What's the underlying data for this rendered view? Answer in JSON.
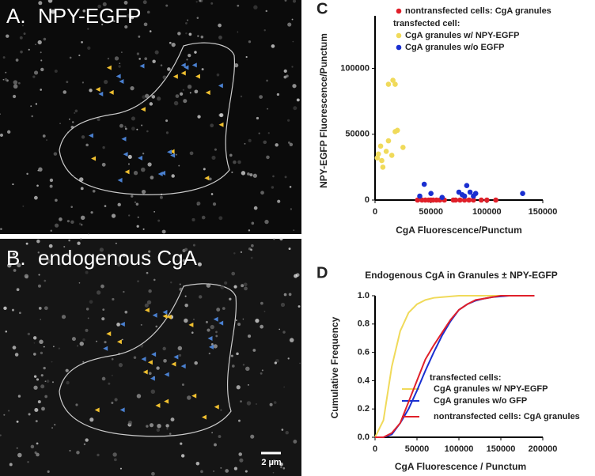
{
  "panels": [
    {
      "label": "A.",
      "title": "NPY-EGFP"
    },
    {
      "label": "B.",
      "title": "endogenous CgA",
      "scale_bar": "2 µm"
    }
  ],
  "chart_data": [
    {
      "type": "scatter",
      "panel_label": "C",
      "xlabel": "CgA Fluorescence/Punctum",
      "ylabel": "NPY-EGFP Fluorescence/Punctum",
      "legend_heading": "transfected cell:",
      "xlim": [
        0,
        150000
      ],
      "ylim": [
        0,
        140000
      ],
      "xticks": [
        0,
        50000,
        100000,
        150000
      ],
      "yticks": [
        0,
        50000,
        100000
      ],
      "series": [
        {
          "name": "nontransfected cells: CgA granules",
          "color": "#e0202a",
          "x": [
            38000,
            42000,
            45000,
            48000,
            50000,
            52000,
            55000,
            58000,
            62000,
            70000,
            72000,
            76000,
            80000,
            84000,
            88000,
            95000,
            100000,
            108000
          ],
          "values": [
            0,
            0,
            0,
            0,
            0,
            0,
            0,
            0,
            0,
            0,
            0,
            0,
            0,
            0,
            0,
            0,
            0,
            0
          ]
        },
        {
          "name": "CgA granules w/ NPY-EGFP",
          "color": "#f0da5a",
          "x": [
            12000,
            16000,
            18000,
            5000,
            3000,
            6000,
            7000,
            10000,
            12000,
            18000,
            20000,
            25000,
            2000,
            15000
          ],
          "values": [
            88000,
            91000,
            88000,
            41000,
            35000,
            30000,
            25000,
            37000,
            45000,
            52000,
            53000,
            40000,
            32000,
            34000
          ]
        },
        {
          "name": "CgA granules w/o EGFP",
          "color": "#1a2fd0",
          "x": [
            44000,
            50000,
            75000,
            78000,
            82000,
            80000,
            85000,
            88000,
            90000,
            132000,
            60000,
            40000
          ],
          "values": [
            12000,
            5000,
            6000,
            4000,
            11000,
            3000,
            6000,
            3000,
            5000,
            5000,
            2000,
            3000
          ]
        }
      ]
    },
    {
      "type": "line",
      "panel_label": "D",
      "title": "Endogenous CgA in Granules ± NPY-EGFP",
      "xlabel": "CgA Fluorescence / Punctum",
      "ylabel": "Cumulative Frequency",
      "legend_heading": "transfected cells:",
      "xlim": [
        0,
        200000
      ],
      "ylim": [
        0,
        1
      ],
      "xticks": [
        0,
        50000,
        100000,
        150000,
        200000
      ],
      "yticks": [
        {
          "value": 0,
          "label": "0.0"
        },
        0.2,
        0.4,
        0.6,
        0.8,
        {
          "value": 1,
          "label": "1.0"
        }
      ],
      "x": [
        0,
        10000,
        20000,
        30000,
        40000,
        50000,
        60000,
        70000,
        80000,
        90000,
        100000,
        110000,
        120000,
        130000,
        140000,
        150000,
        160000,
        170000,
        180000,
        190000
      ],
      "series": [
        {
          "name": "CgA granules w/ NPY-EGFP",
          "color": "#f0da5a",
          "values": [
            0,
            0.12,
            0.5,
            0.75,
            0.88,
            0.94,
            0.97,
            0.985,
            0.99,
            0.995,
            1,
            1,
            1,
            1,
            1,
            1,
            1,
            1,
            1,
            1
          ]
        },
        {
          "name": "CgA granules w/o GFP",
          "color": "#1a2fd0",
          "values": [
            0,
            0,
            0.02,
            0.1,
            0.2,
            0.33,
            0.47,
            0.6,
            0.72,
            0.82,
            0.9,
            0.94,
            0.965,
            0.98,
            0.99,
            0.995,
            1,
            1,
            1,
            1
          ]
        },
        {
          "name": "nontransfected cells: CgA granules",
          "color": "#e0202a",
          "values": [
            0,
            0,
            0.03,
            0.1,
            0.25,
            0.4,
            0.55,
            0.65,
            0.74,
            0.83,
            0.9,
            0.94,
            0.97,
            0.98,
            0.99,
            1,
            1,
            1,
            1,
            1
          ]
        }
      ]
    }
  ]
}
